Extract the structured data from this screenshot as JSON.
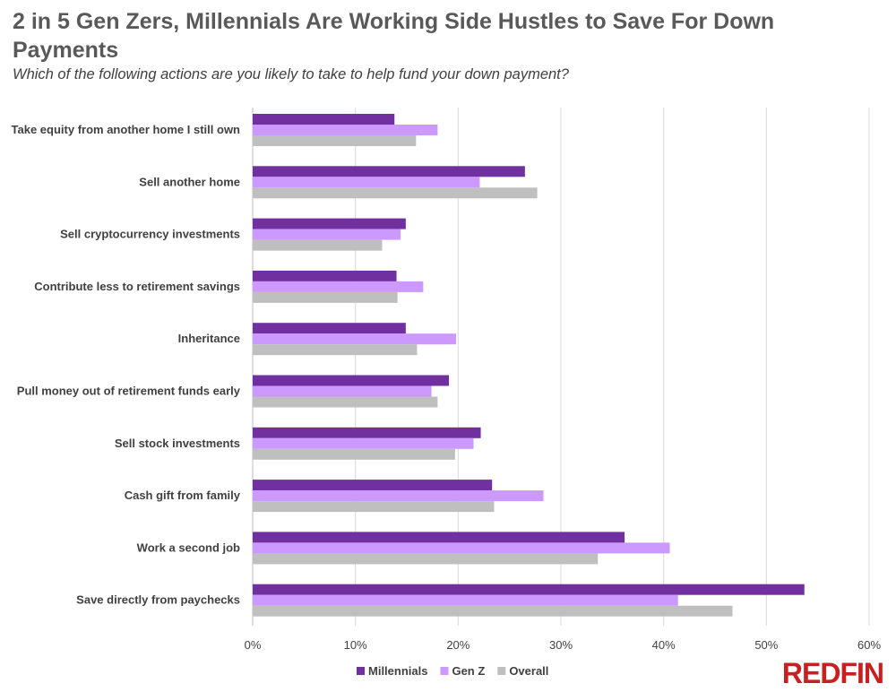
{
  "chart_data": {
    "type": "bar",
    "orientation": "horizontal",
    "title": "2 in 5 Gen Zers, Millennials Are Working Side Hustles to Save For Down Payments",
    "subtitle": "Which of the following actions are you likely to take to help fund your down payment?",
    "categories": [
      "Take equity from another home I still own",
      "Sell another home",
      "Sell cryptocurrency investments",
      "Contribute less to retirement savings",
      "Inheritance",
      "Pull money out of retirement funds early",
      "Sell stock investments",
      "Cash gift from family",
      "Work a second job",
      "Save directly from paychecks"
    ],
    "series": [
      {
        "name": "Millennials",
        "color": "#7030a0",
        "values": [
          13.8,
          26.5,
          14.9,
          14.0,
          14.9,
          19.1,
          22.2,
          23.3,
          36.2,
          53.7
        ]
      },
      {
        "name": "Gen Z",
        "color": "#cc99ff",
        "values": [
          18.0,
          22.1,
          14.4,
          16.6,
          19.8,
          17.4,
          21.5,
          28.3,
          40.6,
          41.4
        ]
      },
      {
        "name": "Overall",
        "color": "#bfbfbf",
        "values": [
          15.9,
          27.7,
          12.6,
          14.1,
          16.0,
          18.0,
          19.7,
          23.5,
          33.6,
          46.7
        ]
      }
    ],
    "xlim": [
      0,
      60
    ],
    "x_ticks": [
      "0%",
      "10%",
      "20%",
      "30%",
      "40%",
      "50%",
      "60%"
    ],
    "grid": true,
    "legend": "bottom"
  },
  "logo": "REDFIN"
}
